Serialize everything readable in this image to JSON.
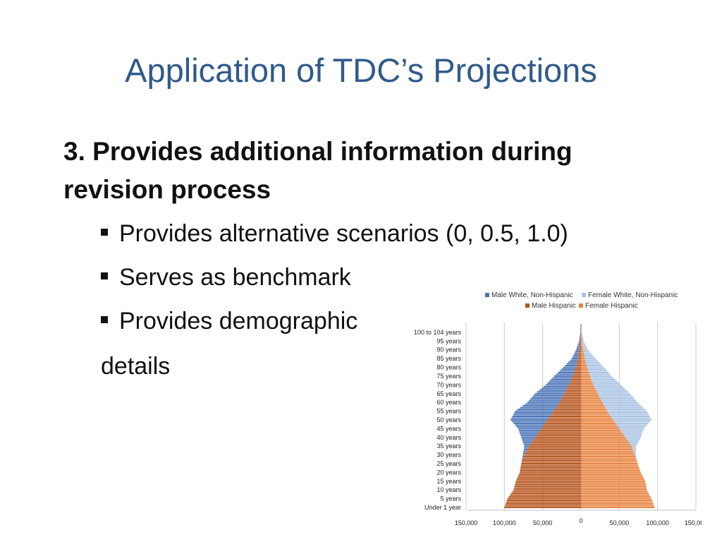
{
  "slide": {
    "title": "Application of TDC’s Projections",
    "heading": "3. Provides additional information during revision process",
    "bullets": [
      "Provides alternative scenarios (0, 0.5, 1.0)",
      "Serves as benchmark",
      "Provides demographic"
    ],
    "bullet_continuation": "details"
  },
  "chart_data": {
    "type": "bar",
    "orientation": "horizontal-population-pyramid",
    "stacked": true,
    "legend": [
      "Male White, Non-Hispanic",
      "Female White, Non-Hispanic",
      "Male Hispanic",
      "Female Hispanic"
    ],
    "legend_position": "top",
    "colors": {
      "male_white": "#4a74b9",
      "female_white": "#a9c4e2",
      "male_hispanic": "#b5541d",
      "female_hispanic": "#e8823f"
    },
    "age_labels": [
      "Under 1 year",
      "5 years",
      "10 years",
      "15 years",
      "20 years",
      "25 years",
      "30 years",
      "35 years",
      "40 years",
      "45 years",
      "50 years",
      "55 years",
      "60 years",
      "65 years",
      "70 years",
      "75 years",
      "80 years",
      "85 years",
      "90 years",
      "95 years",
      "100 to 104 years"
    ],
    "x_ticks": [
      "150,000",
      "100,000",
      "50,000",
      "0",
      "50,000",
      "100,000",
      "150,000"
    ],
    "x_tick_values": [
      -150000,
      -100000,
      -50000,
      0,
      50000,
      100000,
      150000
    ],
    "xlim": [
      -150000,
      150000
    ],
    "grid": true,
    "sample_ages": [
      0,
      5,
      10,
      15,
      20,
      25,
      30,
      35,
      40,
      45,
      50,
      55,
      60,
      65,
      70,
      75,
      80,
      85,
      90,
      95,
      100
    ],
    "male_hispanic": [
      100000,
      96000,
      88000,
      85000,
      80000,
      78000,
      74000,
      68000,
      60000,
      52000,
      44000,
      36000,
      28000,
      22000,
      16000,
      11000,
      7000,
      4000,
      2500,
      1000,
      300
    ],
    "male_white": [
      0,
      0,
      0,
      0,
      0,
      0,
      2000,
      6000,
      18000,
      30000,
      48000,
      50000,
      42000,
      38000,
      30000,
      24000,
      16000,
      8000,
      4000,
      1500,
      500
    ],
    "female_hispanic": [
      96000,
      92000,
      86000,
      84000,
      78000,
      74000,
      70000,
      66000,
      58000,
      50000,
      42000,
      34000,
      28000,
      22000,
      16000,
      12000,
      8000,
      5000,
      3000,
      1200,
      400
    ],
    "female_white": [
      0,
      0,
      0,
      0,
      0,
      0,
      2000,
      6000,
      20000,
      32000,
      50000,
      52000,
      46000,
      42000,
      36000,
      28000,
      22000,
      14000,
      6000,
      2500,
      800
    ]
  }
}
